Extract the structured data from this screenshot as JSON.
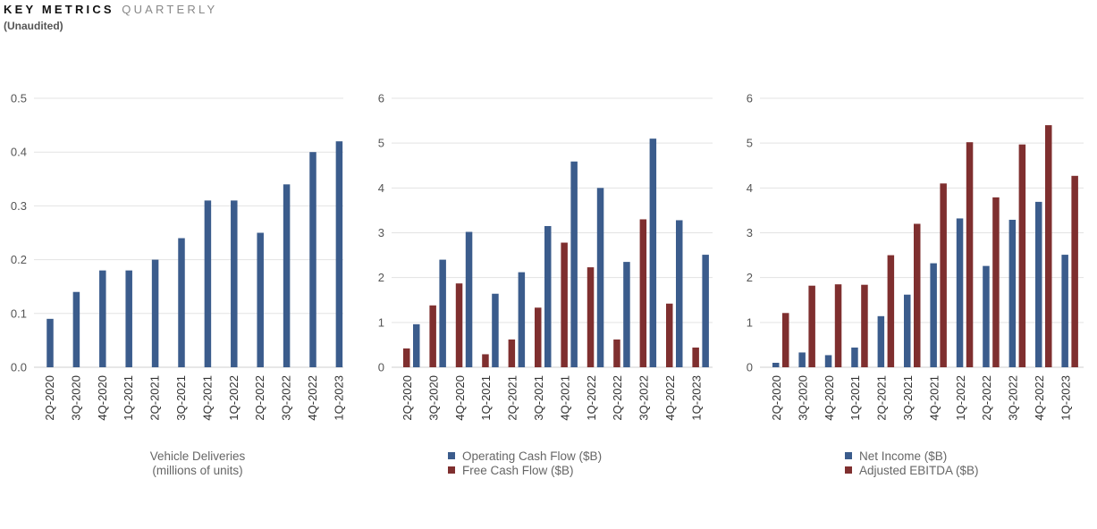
{
  "header": {
    "title": "KEY METRICS",
    "title_suffix": "QUARTERLY",
    "subtitle": "(Unaudited)"
  },
  "colors": {
    "blue": "#3b5c8c",
    "red": "#7f2f2f",
    "grid": "#e3e3e3"
  },
  "chart_data": [
    {
      "type": "bar",
      "categories": [
        "2Q-2020",
        "3Q-2020",
        "4Q-2020",
        "1Q-2021",
        "2Q-2021",
        "3Q-2021",
        "4Q-2021",
        "1Q-2022",
        "2Q-2022",
        "3Q-2022",
        "4Q-2022",
        "1Q-2023"
      ],
      "series": [
        {
          "name": "Vehicle Deliveries",
          "color": "#3b5c8c",
          "values": [
            0.09,
            0.14,
            0.18,
            0.18,
            0.2,
            0.24,
            0.31,
            0.31,
            0.25,
            0.34,
            0.4,
            0.42
          ]
        }
      ],
      "ylim": [
        0,
        0.5
      ],
      "yticks": [
        "0.0",
        "0.1",
        "0.2",
        "0.3",
        "0.4",
        "0.5"
      ],
      "caption": [
        "Vehicle Deliveries",
        "(millions of units)"
      ],
      "grid": true
    },
    {
      "type": "bar",
      "categories": [
        "2Q-2020",
        "3Q-2020",
        "4Q-2020",
        "1Q-2021",
        "2Q-2021",
        "3Q-2021",
        "4Q-2021",
        "1Q-2022",
        "2Q-2022",
        "3Q-2022",
        "4Q-2022",
        "1Q-2023"
      ],
      "series": [
        {
          "name": "Free Cash Flow ($B)",
          "color": "#7f2f2f",
          "values": [
            0.42,
            1.38,
            1.87,
            0.29,
            0.62,
            1.33,
            2.78,
            2.23,
            0.62,
            3.3,
            1.42,
            0.44
          ]
        },
        {
          "name": "Operating Cash Flow ($B)",
          "color": "#3b5c8c",
          "values": [
            0.96,
            2.4,
            3.02,
            1.64,
            2.12,
            3.15,
            4.59,
            4.0,
            2.35,
            5.1,
            3.28,
            2.51
          ]
        }
      ],
      "ylim": [
        0,
        6
      ],
      "yticks": [
        "0",
        "1",
        "2",
        "3",
        "4",
        "5",
        "6"
      ],
      "legend": [
        {
          "label": "Operating Cash Flow ($B)",
          "color": "#3b5c8c"
        },
        {
          "label": "Free Cash Flow ($B)",
          "color": "#7f2f2f"
        }
      ],
      "legend_placement": "bottom",
      "grid": true
    },
    {
      "type": "bar",
      "categories": [
        "2Q-2020",
        "3Q-2020",
        "4Q-2020",
        "1Q-2021",
        "2Q-2021",
        "3Q-2021",
        "4Q-2021",
        "1Q-2022",
        "2Q-2022",
        "3Q-2022",
        "4Q-2022",
        "1Q-2023"
      ],
      "series": [
        {
          "name": "Net Income ($B)",
          "color": "#3b5c8c",
          "values": [
            0.1,
            0.33,
            0.27,
            0.44,
            1.14,
            1.62,
            2.32,
            3.32,
            2.26,
            3.29,
            3.69,
            2.51
          ]
        },
        {
          "name": "Adjusted EBITDA ($B)",
          "color": "#7f2f2f",
          "values": [
            1.21,
            1.82,
            1.85,
            1.84,
            2.5,
            3.2,
            4.1,
            5.02,
            3.79,
            4.97,
            5.4,
            4.27
          ]
        }
      ],
      "ylim": [
        0,
        6
      ],
      "yticks": [
        "0",
        "1",
        "2",
        "3",
        "4",
        "5",
        "6"
      ],
      "legend": [
        {
          "label": "Net Income ($B)",
          "color": "#3b5c8c"
        },
        {
          "label": "Adjusted EBITDA ($B)",
          "color": "#7f2f2f"
        }
      ],
      "legend_placement": "bottom",
      "grid": true
    }
  ]
}
